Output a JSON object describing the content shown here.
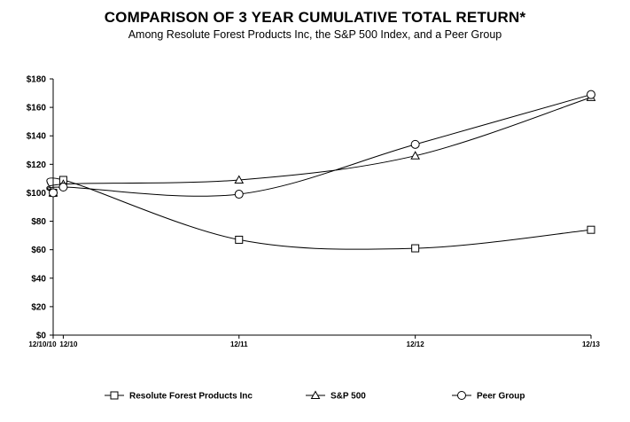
{
  "chart_data": {
    "type": "line",
    "title": "COMPARISON OF 3 YEAR CUMULATIVE TOTAL RETURN*",
    "subtitle": "Among Resolute Forest Products Inc, the S&P 500 Index, and a Peer Group",
    "categories": [
      "12/10/10",
      "12/10",
      "12/11",
      "12/12",
      "12/13"
    ],
    "x": [
      "2010-12-10",
      "2010-12-31",
      "2011-12-31",
      "2012-12-31",
      "2013-12-31"
    ],
    "yticks": [
      "$0",
      "$20",
      "$40",
      "$60",
      "$80",
      "$100",
      "$120",
      "$140",
      "$160",
      "$180"
    ],
    "ylim": [
      0,
      180
    ],
    "grid": false,
    "legend_position": "bottom",
    "series": [
      {
        "name": "Resolute Forest Products Inc",
        "marker": "square",
        "values": [
          100,
          109,
          67,
          61,
          74
        ]
      },
      {
        "name": "S&P 500",
        "marker": "triangle",
        "values": [
          100,
          106,
          109,
          126,
          167
        ]
      },
      {
        "name": "Peer Group",
        "marker": "circle",
        "values": [
          100,
          104,
          99,
          134,
          169
        ]
      }
    ]
  }
}
